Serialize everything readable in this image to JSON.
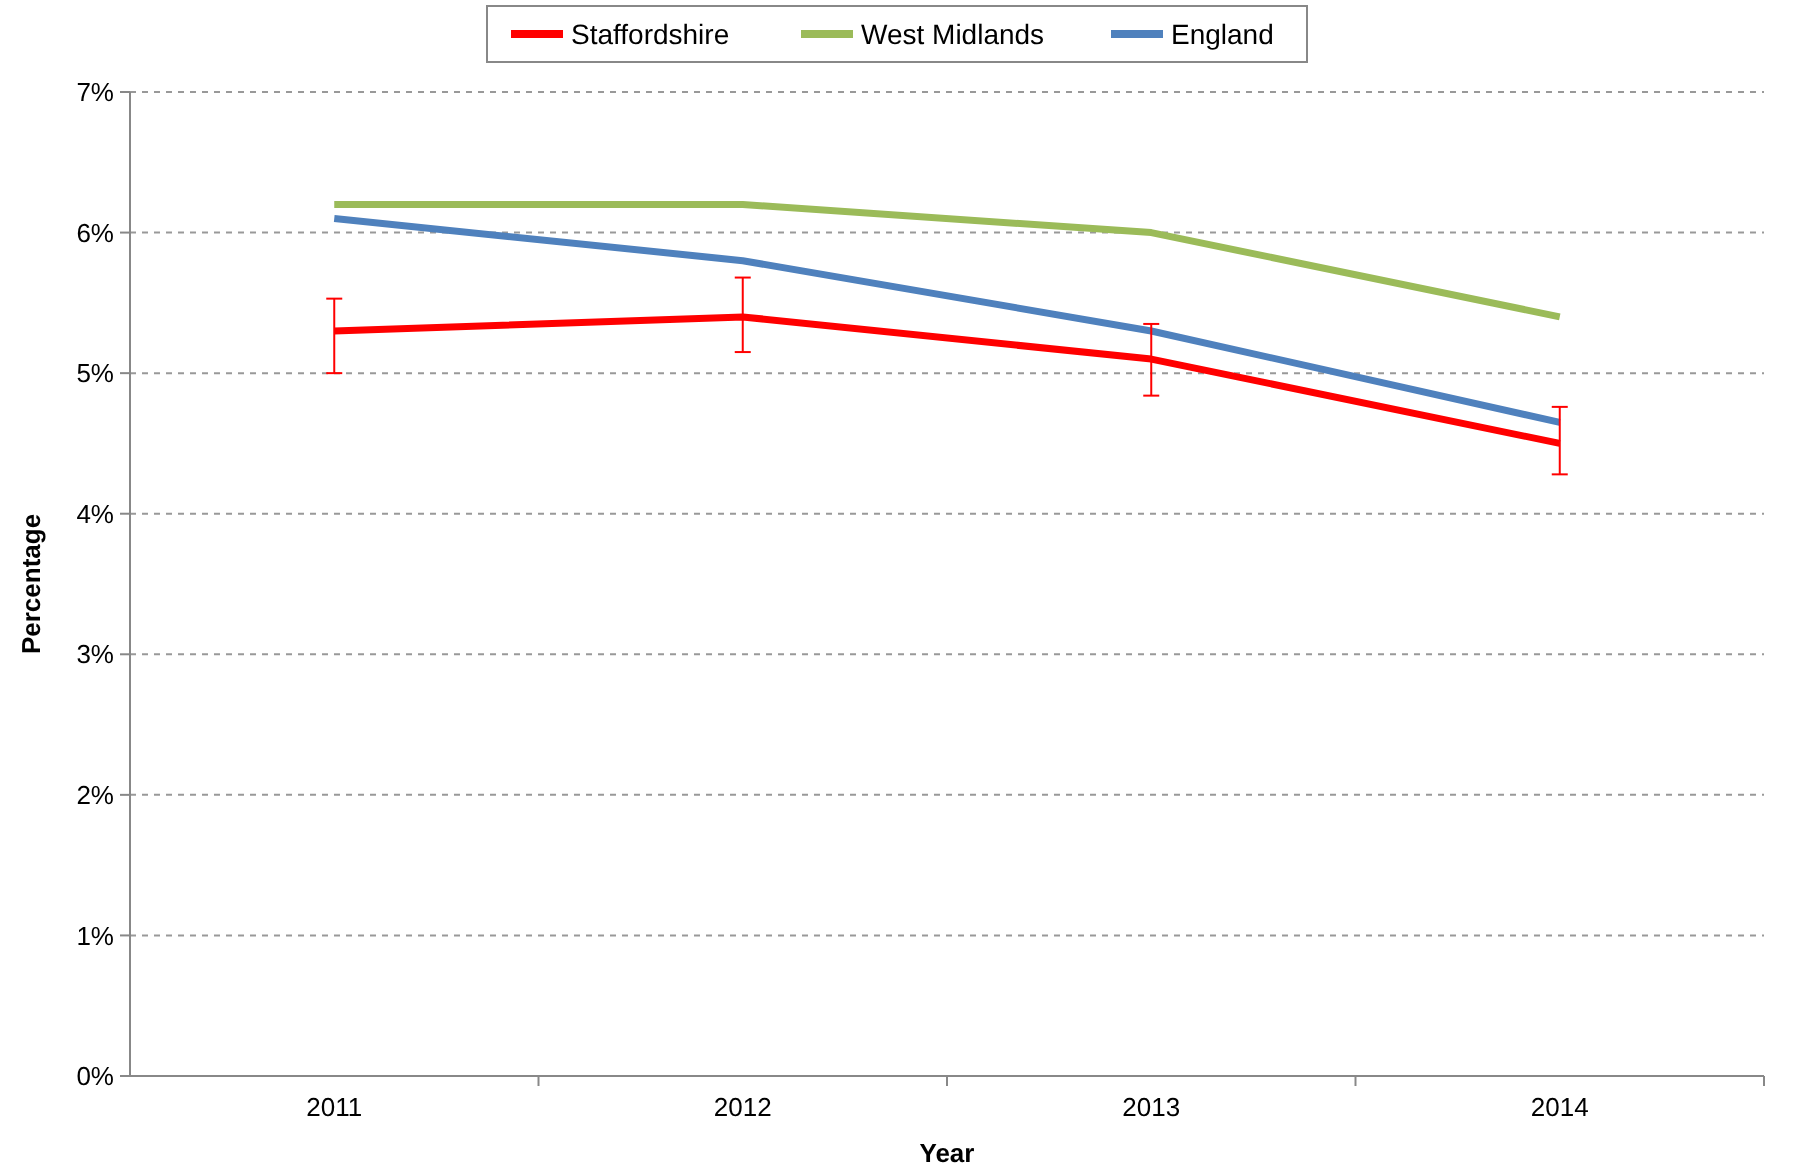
{
  "chart_data": {
    "type": "line",
    "xlabel": "Year",
    "ylabel": "Percentage",
    "categories": [
      "2011",
      "2012",
      "2013",
      "2014"
    ],
    "series": [
      {
        "name": "Staffordshire",
        "color": "#ff0000",
        "values": [
          5.3,
          5.4,
          5.1,
          4.5
        ],
        "errors": [
          [
            5.0,
            5.53
          ],
          [
            5.15,
            5.68
          ],
          [
            4.84,
            5.35
          ],
          [
            4.28,
            4.76
          ]
        ]
      },
      {
        "name": "West Midlands",
        "color": "#9bbb59",
        "values": [
          6.2,
          6.2,
          6.0,
          5.4
        ]
      },
      {
        "name": "England",
        "color": "#4f81bd",
        "values": [
          6.1,
          5.8,
          5.3,
          4.65
        ]
      }
    ],
    "ylim": [
      0,
      7
    ],
    "yticks": [
      {
        "value": 0,
        "label": "0%"
      },
      {
        "value": 1,
        "label": "1%"
      },
      {
        "value": 2,
        "label": "2%"
      },
      {
        "value": 3,
        "label": "3%"
      },
      {
        "value": 4,
        "label": "4%"
      },
      {
        "value": 5,
        "label": "5%"
      },
      {
        "value": 6,
        "label": "6%"
      },
      {
        "value": 7,
        "label": "7%"
      }
    ],
    "grid": "y",
    "legend": "top",
    "marker": "none",
    "line_style": "solid"
  }
}
